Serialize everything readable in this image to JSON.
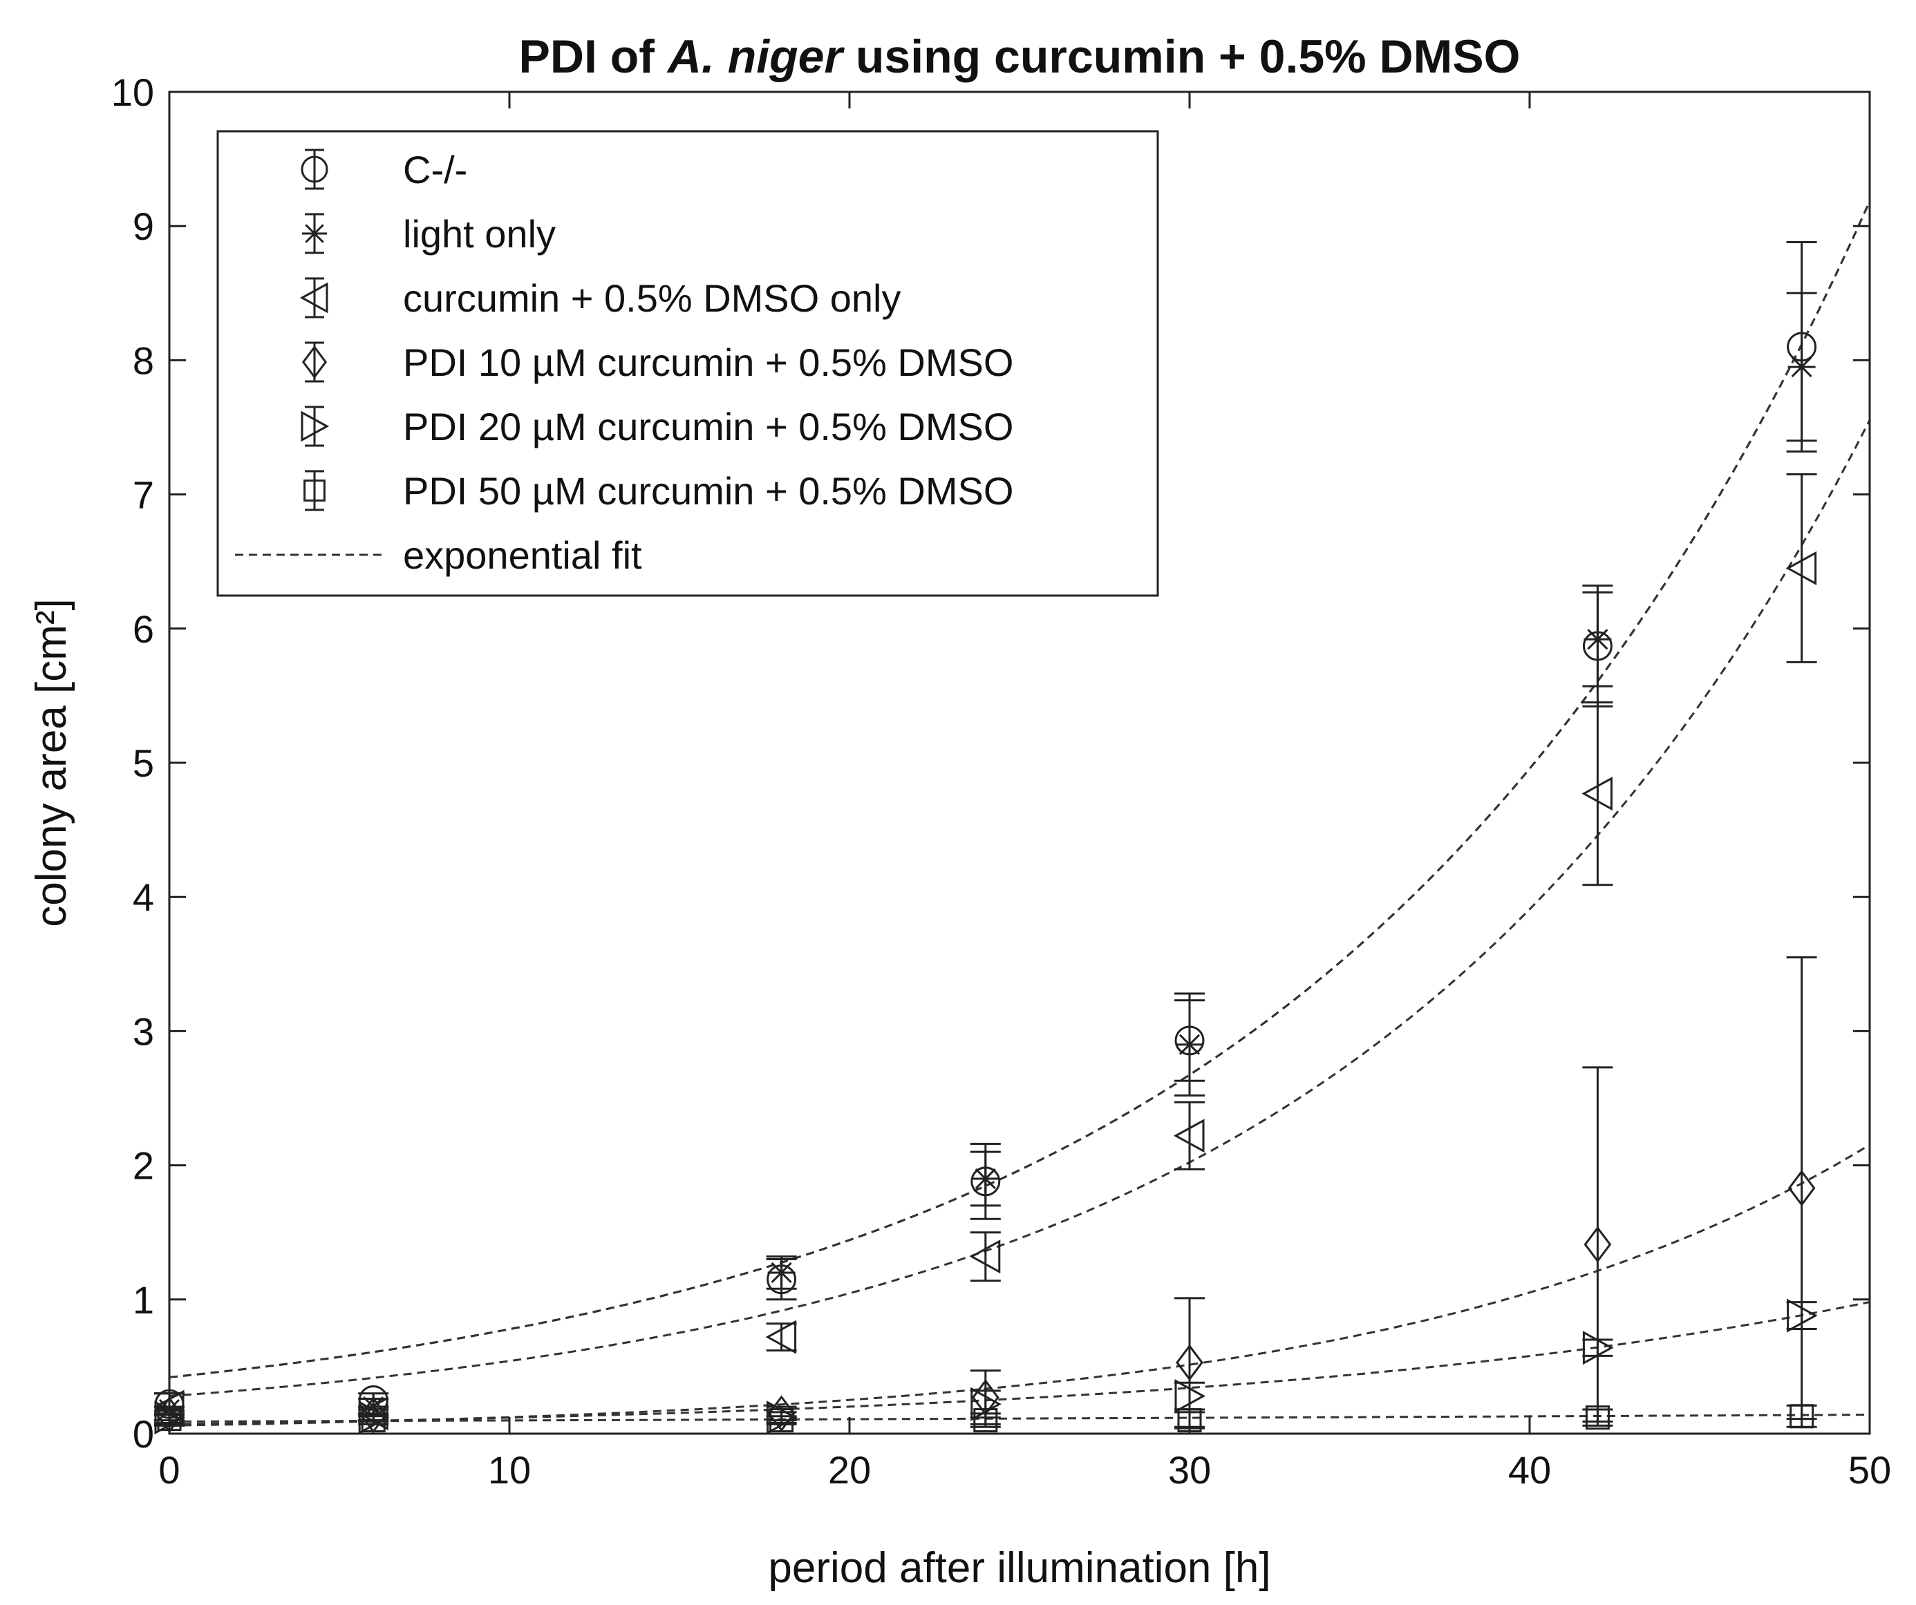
{
  "chart_data": {
    "type": "scatter",
    "title": {
      "prefix": "PDI of ",
      "italic": "A. niger",
      "suffix": " using curcumin + 0.5% DMSO"
    },
    "xlabel": "period after illumination [h]",
    "ylabel": "colony area [cm²]",
    "xlim": [
      0,
      50
    ],
    "ylim": [
      0,
      10
    ],
    "xticks": [
      0,
      10,
      20,
      30,
      40,
      50
    ],
    "yticks": [
      0,
      1,
      2,
      3,
      4,
      5,
      6,
      7,
      8,
      9,
      10
    ],
    "grid": false,
    "legend_position": "top-left",
    "x": [
      0,
      6,
      18,
      24,
      30,
      42,
      48
    ],
    "series": [
      {
        "name": "C-/-",
        "marker": "circle",
        "values": [
          0.22,
          0.25,
          1.15,
          1.88,
          2.93,
          5.87,
          8.1
        ],
        "errors": [
          0.08,
          0.05,
          0.15,
          0.28,
          0.3,
          0.45,
          0.78
        ],
        "fit": {
          "a": 0.42,
          "b": 0.0617
        }
      },
      {
        "name": "light only",
        "marker": "asterisk",
        "values": [
          0.18,
          0.2,
          1.2,
          1.9,
          2.9,
          5.92,
          7.95
        ],
        "errors": [
          0.12,
          0.06,
          0.12,
          0.2,
          0.38,
          0.35,
          0.55
        ],
        "fit": {
          "a": 0.42,
          "b": 0.0617
        }
      },
      {
        "name": "curcumin + 0.5% DMSO only",
        "marker": "triangle-left",
        "values": [
          0.2,
          0.15,
          0.72,
          1.32,
          2.22,
          4.77,
          6.45
        ],
        "errors": [
          0.1,
          0.05,
          0.1,
          0.18,
          0.25,
          0.68,
          0.7
        ],
        "fit": {
          "a": 0.28,
          "b": 0.0659
        }
      },
      {
        "name": "PDI 10 µM curcumin + 0.5% DMSO",
        "marker": "diamond",
        "values": [
          0.14,
          0.14,
          0.15,
          0.27,
          0.53,
          1.41,
          1.83
        ],
        "errors": [
          0.06,
          0.04,
          0.05,
          0.2,
          0.48,
          1.32,
          1.72
        ],
        "fit": {
          "a": 0.06,
          "b": 0.0716
        }
      },
      {
        "name": "PDI 20 µM curcumin + 0.5% DMSO",
        "marker": "triangle-right",
        "values": [
          0.12,
          0.12,
          0.12,
          0.22,
          0.28,
          0.64,
          0.88
        ],
        "errors": [
          0.05,
          0.03,
          0.04,
          0.1,
          0.1,
          0.06,
          0.1
        ],
        "fit": {
          "a": 0.07,
          "b": 0.0528
        }
      },
      {
        "name": "PDI 50 µM curcumin + 0.5% DMSO",
        "marker": "square",
        "values": [
          0.11,
          0.1,
          0.1,
          0.1,
          0.1,
          0.12,
          0.13
        ],
        "errors": [
          0.04,
          0.03,
          0.03,
          0.05,
          0.06,
          0.06,
          0.08
        ],
        "fit": {
          "a": 0.09,
          "b": 0.009
        }
      }
    ],
    "fit_label": "exponential fit"
  }
}
